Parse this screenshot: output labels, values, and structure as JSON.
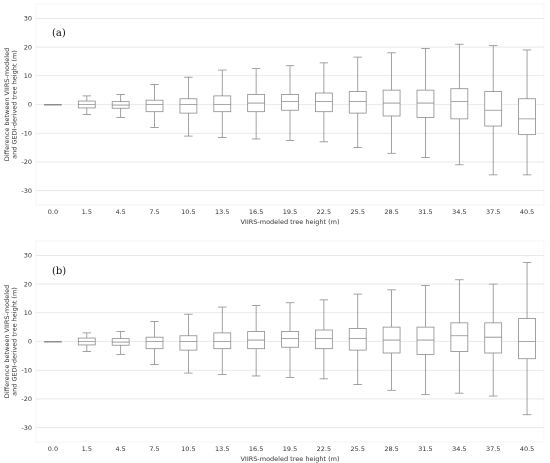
{
  "chart_data": [
    {
      "type": "box",
      "panel_label": "(a)",
      "xlabel": "VIIRS-modeled tree height (m)",
      "ylabel_lines": [
        "Difference between VIIRS-modeled",
        "and GEDI-derived tree height (m)"
      ],
      "categories": [
        "0.0",
        "1.5",
        "4.5",
        "7.5",
        "10.5",
        "13.5",
        "16.5",
        "19.5",
        "22.5",
        "25.5",
        "28.5",
        "31.5",
        "34.5",
        "37.5",
        "40.5"
      ],
      "ylim": [
        -35,
        35
      ],
      "yticks": [
        -30,
        -20,
        -10,
        0,
        10,
        20,
        30
      ],
      "grid": true,
      "boxes": [
        {
          "min": 0.0,
          "q1": 0.0,
          "median": 0.0,
          "q3": 0.0,
          "max": 0.0
        },
        {
          "min": -3.5,
          "q1": -1.2,
          "median": 0.0,
          "q3": 1.2,
          "max": 3.0
        },
        {
          "min": -4.5,
          "q1": -1.3,
          "median": -0.2,
          "q3": 1.0,
          "max": 3.5
        },
        {
          "min": -8.0,
          "q1": -2.5,
          "median": 0.0,
          "q3": 1.5,
          "max": 7.0
        },
        {
          "min": -11.0,
          "q1": -3.0,
          "median": 0.0,
          "q3": 2.0,
          "max": 9.5
        },
        {
          "min": -11.5,
          "q1": -2.5,
          "median": 0.0,
          "q3": 3.0,
          "max": 12.0
        },
        {
          "min": -12.0,
          "q1": -2.5,
          "median": 0.5,
          "q3": 3.5,
          "max": 12.5
        },
        {
          "min": -12.5,
          "q1": -2.0,
          "median": 1.0,
          "q3": 3.5,
          "max": 13.5
        },
        {
          "min": -13.0,
          "q1": -2.5,
          "median": 1.0,
          "q3": 4.0,
          "max": 14.5
        },
        {
          "min": -15.0,
          "q1": -3.0,
          "median": 1.0,
          "q3": 4.5,
          "max": 16.5
        },
        {
          "min": -17.0,
          "q1": -4.0,
          "median": 0.5,
          "q3": 5.0,
          "max": 18.0
        },
        {
          "min": -18.5,
          "q1": -4.5,
          "median": 0.5,
          "q3": 5.0,
          "max": 19.5
        },
        {
          "min": -21.0,
          "q1": -5.0,
          "median": 1.0,
          "q3": 5.5,
          "max": 21.0
        },
        {
          "min": -24.5,
          "q1": -7.5,
          "median": -2.0,
          "q3": 4.5,
          "max": 20.5
        },
        {
          "min": -24.5,
          "q1": -10.5,
          "median": -5.0,
          "q3": 2.0,
          "max": 19.0
        }
      ]
    },
    {
      "type": "box",
      "panel_label": "(b)",
      "xlabel": "VIIRS-modeled tree height (m)",
      "ylabel_lines": [
        "Difference between VIIRS-modeled",
        "and GEDI-derived tree height (m)"
      ],
      "categories": [
        "0.0",
        "1.5",
        "4.5",
        "7.5",
        "10.5",
        "13.5",
        "16.5",
        "19.5",
        "22.5",
        "25.5",
        "28.5",
        "31.5",
        "34.5",
        "37.5",
        "40.5"
      ],
      "ylim": [
        -35,
        35
      ],
      "yticks": [
        -30,
        -20,
        -10,
        0,
        10,
        20,
        30
      ],
      "grid": true,
      "boxes": [
        {
          "min": 0.0,
          "q1": 0.0,
          "median": 0.0,
          "q3": 0.0,
          "max": 0.0
        },
        {
          "min": -3.5,
          "q1": -1.2,
          "median": 0.0,
          "q3": 1.2,
          "max": 3.0
        },
        {
          "min": -4.5,
          "q1": -1.3,
          "median": -0.2,
          "q3": 1.0,
          "max": 3.5
        },
        {
          "min": -8.0,
          "q1": -2.5,
          "median": 0.0,
          "q3": 1.5,
          "max": 7.0
        },
        {
          "min": -11.0,
          "q1": -3.0,
          "median": 0.0,
          "q3": 2.0,
          "max": 9.5
        },
        {
          "min": -11.5,
          "q1": -2.5,
          "median": 0.0,
          "q3": 3.0,
          "max": 12.0
        },
        {
          "min": -12.0,
          "q1": -2.5,
          "median": 0.5,
          "q3": 3.5,
          "max": 12.5
        },
        {
          "min": -12.5,
          "q1": -2.0,
          "median": 1.0,
          "q3": 3.5,
          "max": 13.5
        },
        {
          "min": -13.0,
          "q1": -2.5,
          "median": 1.0,
          "q3": 4.0,
          "max": 14.5
        },
        {
          "min": -15.0,
          "q1": -3.0,
          "median": 1.0,
          "q3": 4.5,
          "max": 16.5
        },
        {
          "min": -17.0,
          "q1": -4.0,
          "median": 0.5,
          "q3": 5.0,
          "max": 18.0
        },
        {
          "min": -18.5,
          "q1": -4.5,
          "median": 0.5,
          "q3": 5.0,
          "max": 19.5
        },
        {
          "min": -18.0,
          "q1": -3.5,
          "median": 2.0,
          "q3": 6.5,
          "max": 21.5
        },
        {
          "min": -19.0,
          "q1": -4.0,
          "median": 1.5,
          "q3": 6.5,
          "max": 20.0
        },
        {
          "min": -25.5,
          "q1": -6.0,
          "median": 0.0,
          "q3": 8.0,
          "max": 27.5
        }
      ]
    }
  ],
  "colors": {
    "grid": "#e4e4e4",
    "box_stroke": "#8c8c8c",
    "text": "#333333"
  }
}
